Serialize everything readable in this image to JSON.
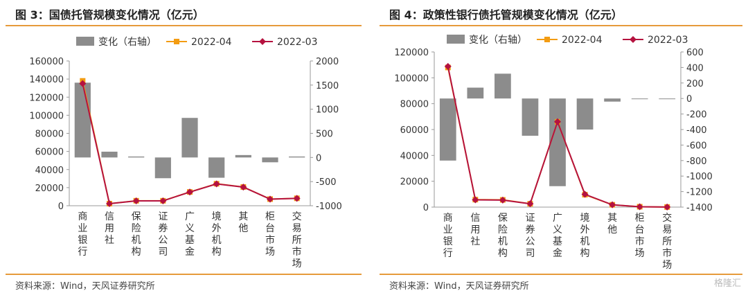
{
  "watermark": "格隆汇",
  "charts": [
    {
      "title": "图 3：国债托管规模变化情况（亿元）",
      "source": "资料来源：Wind，天风证券研究所",
      "chart_data": {
        "type": "bar",
        "categories": [
          "商业银行",
          "信用社",
          "保险机构",
          "证券公司",
          "广义基金",
          "境外机构",
          "其他",
          "柜台市场",
          "交易所市场"
        ],
        "series": [
          {
            "name": "变化（右轴）",
            "axis": "right",
            "kind": "bar",
            "color": "#8c8c8c",
            "values": [
              1550,
              120,
              20,
              -430,
              820,
              -420,
              50,
              -100,
              20
            ]
          },
          {
            "name": "2022-04",
            "axis": "left",
            "kind": "line",
            "color": "#f39c12",
            "marker": "square",
            "values": [
              138000,
              2300,
              5500,
              5500,
              15200,
              24300,
              20700,
              7300,
              8200
            ]
          },
          {
            "name": "2022-03",
            "axis": "left",
            "kind": "line",
            "color": "#b5123f",
            "marker": "diamond",
            "values": [
              135000,
              2300,
              5400,
              5400,
              15100,
              24100,
              20600,
              7300,
              8100
            ]
          }
        ],
        "left_axis": {
          "min": 0,
          "max": 160000,
          "ticks": [
            0,
            20000,
            40000,
            60000,
            80000,
            100000,
            120000,
            140000,
            160000
          ]
        },
        "right_axis": {
          "min": -1000,
          "max": 2000,
          "ticks": [
            -1000,
            -500,
            0,
            500,
            1000,
            1500,
            2000
          ]
        },
        "legend": "top"
      }
    },
    {
      "title": "图 4：政策性银行债托管规模变化情况（亿元）",
      "source": "资料来源：Wind，天风证券研究所",
      "chart_data": {
        "type": "bar",
        "categories": [
          "商业银行",
          "信用社",
          "保险机构",
          "证券公司",
          "广义基金",
          "境外机构",
          "其他",
          "柜台市场",
          "交易所市场"
        ],
        "series": [
          {
            "name": "变化（右轴）",
            "axis": "right",
            "kind": "bar",
            "color": "#8c8c8c",
            "values": [
              -800,
              140,
              320,
              -480,
              -1130,
              -400,
              -40,
              -5,
              0
            ]
          },
          {
            "name": "2022-04",
            "axis": "left",
            "kind": "line",
            "color": "#f39c12",
            "marker": "square",
            "values": [
              108000,
              5800,
              5600,
              2600,
              66000,
              9600,
              1800,
              300,
              100
            ]
          },
          {
            "name": "2022-03",
            "axis": "left",
            "kind": "line",
            "color": "#b5123f",
            "marker": "diamond",
            "values": [
              108800,
              5600,
              5400,
              2600,
              66000,
              9900,
              1800,
              300,
              100
            ]
          }
        ],
        "left_axis": {
          "min": 0,
          "max": 120000,
          "ticks": [
            0,
            20000,
            40000,
            60000,
            80000,
            100000,
            120000
          ]
        },
        "right_axis": {
          "min": -1400,
          "max": 600,
          "ticks": [
            -1400,
            -1200,
            -1000,
            -800,
            -600,
            -400,
            -200,
            0,
            200,
            400,
            600
          ]
        },
        "legend": "top"
      }
    }
  ]
}
